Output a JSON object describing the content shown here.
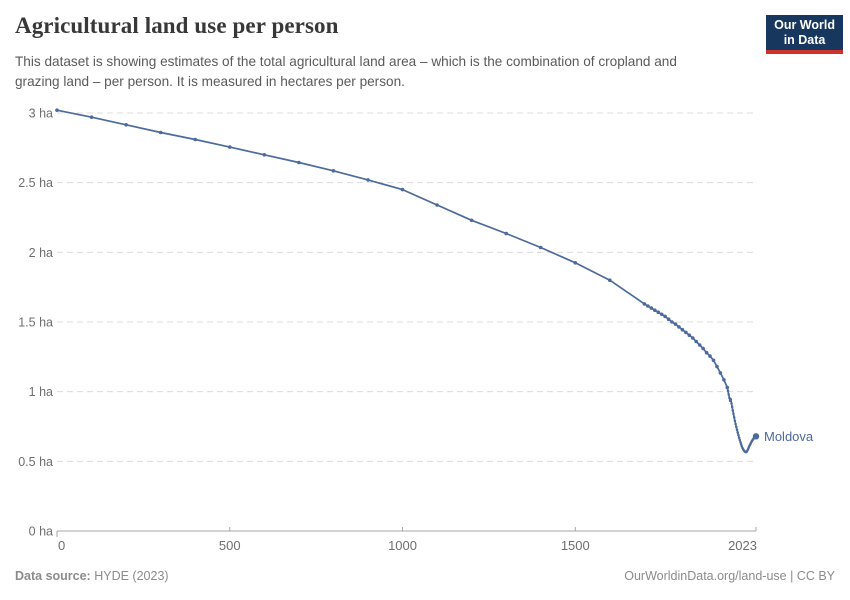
{
  "header": {
    "title": "Agricultural land use per person",
    "subtitle": "This dataset is showing estimates of the total agricultural land area – which is the combination of cropland and grazing land – per person. It is measured in hectares per person.",
    "logo": {
      "line1": "Our World",
      "line2": "in Data"
    }
  },
  "chart_data": {
    "type": "line",
    "title": "Agricultural land use per person",
    "ylabel": "hectares per person",
    "xlim": [
      0,
      2023
    ],
    "ylim": [
      0,
      3
    ],
    "grid": "horizontal-dashed",
    "legend_position": "end-of-line-label",
    "x_ticks": [
      {
        "value": 0,
        "label": "0"
      },
      {
        "value": 500,
        "label": "500"
      },
      {
        "value": 1000,
        "label": "1000"
      },
      {
        "value": 1500,
        "label": "1500"
      },
      {
        "value": 2023,
        "label": "2023"
      }
    ],
    "y_ticks": [
      {
        "value": 0,
        "label": "0 ha"
      },
      {
        "value": 0.5,
        "label": "0.5 ha"
      },
      {
        "value": 1,
        "label": "1 ha"
      },
      {
        "value": 1.5,
        "label": "1.5 ha"
      },
      {
        "value": 2,
        "label": "2 ha"
      },
      {
        "value": 2.5,
        "label": "2.5 ha"
      },
      {
        "value": 3,
        "label": "3 ha"
      }
    ],
    "series": [
      {
        "name": "Moldova",
        "color": "#4C6A9C",
        "points": [
          [
            0,
            3.02
          ],
          [
            100,
            2.97
          ],
          [
            200,
            2.915
          ],
          [
            300,
            2.86
          ],
          [
            400,
            2.81
          ],
          [
            500,
            2.755
          ],
          [
            600,
            2.7
          ],
          [
            700,
            2.645
          ],
          [
            800,
            2.585
          ],
          [
            900,
            2.52
          ],
          [
            1000,
            2.45
          ],
          [
            1100,
            2.34
          ],
          [
            1200,
            2.23
          ],
          [
            1300,
            2.135
          ],
          [
            1400,
            2.035
          ],
          [
            1500,
            1.925
          ],
          [
            1600,
            1.8
          ],
          [
            1700,
            1.63
          ],
          [
            1710,
            1.615
          ],
          [
            1720,
            1.6
          ],
          [
            1730,
            1.585
          ],
          [
            1740,
            1.57
          ],
          [
            1750,
            1.555
          ],
          [
            1760,
            1.54
          ],
          [
            1770,
            1.52
          ],
          [
            1780,
            1.5
          ],
          [
            1790,
            1.485
          ],
          [
            1800,
            1.465
          ],
          [
            1810,
            1.445
          ],
          [
            1820,
            1.425
          ],
          [
            1830,
            1.405
          ],
          [
            1840,
            1.385
          ],
          [
            1850,
            1.36
          ],
          [
            1860,
            1.335
          ],
          [
            1870,
            1.31
          ],
          [
            1880,
            1.28
          ],
          [
            1890,
            1.255
          ],
          [
            1900,
            1.225
          ],
          [
            1910,
            1.18
          ],
          [
            1920,
            1.135
          ],
          [
            1930,
            1.085
          ],
          [
            1940,
            1.03
          ],
          [
            1942,
            1.005
          ],
          [
            1944,
            0.98
          ],
          [
            1946,
            0.955
          ],
          [
            1948,
            0.935
          ],
          [
            1950,
            0.945
          ],
          [
            1952,
            0.915
          ],
          [
            1954,
            0.89
          ],
          [
            1956,
            0.865
          ],
          [
            1958,
            0.84
          ],
          [
            1960,
            0.815
          ],
          [
            1962,
            0.79
          ],
          [
            1964,
            0.768
          ],
          [
            1966,
            0.747
          ],
          [
            1968,
            0.727
          ],
          [
            1970,
            0.707
          ],
          [
            1972,
            0.688
          ],
          [
            1974,
            0.67
          ],
          [
            1976,
            0.653
          ],
          [
            1978,
            0.637
          ],
          [
            1980,
            0.622
          ],
          [
            1982,
            0.608
          ],
          [
            1984,
            0.596
          ],
          [
            1986,
            0.586
          ],
          [
            1988,
            0.578
          ],
          [
            1990,
            0.572
          ],
          [
            1992,
            0.568
          ],
          [
            1994,
            0.566
          ],
          [
            1996,
            0.57
          ],
          [
            1998,
            0.578
          ],
          [
            2000,
            0.588
          ],
          [
            2002,
            0.599
          ],
          [
            2004,
            0.61
          ],
          [
            2006,
            0.62
          ],
          [
            2008,
            0.63
          ],
          [
            2010,
            0.64
          ],
          [
            2012,
            0.649
          ],
          [
            2014,
            0.657
          ],
          [
            2016,
            0.664
          ],
          [
            2018,
            0.67
          ],
          [
            2020,
            0.675
          ],
          [
            2023,
            0.68
          ]
        ]
      }
    ]
  },
  "footer": {
    "source_label": "Data source:",
    "source_value": "HYDE (2023)",
    "credit": "OurWorldinData.org/land-use | CC BY"
  },
  "colors": {
    "accent_blue": "#4C6A9C",
    "grid": "#dcdcdc",
    "axis": "#a5a5a5",
    "tick_label": "#6e6e6e",
    "title": "#383838",
    "subtitle": "#5a5a5a",
    "footer": "#8b8b8b",
    "logo_bg": "#18375f",
    "logo_stripe": "#cd322b"
  }
}
